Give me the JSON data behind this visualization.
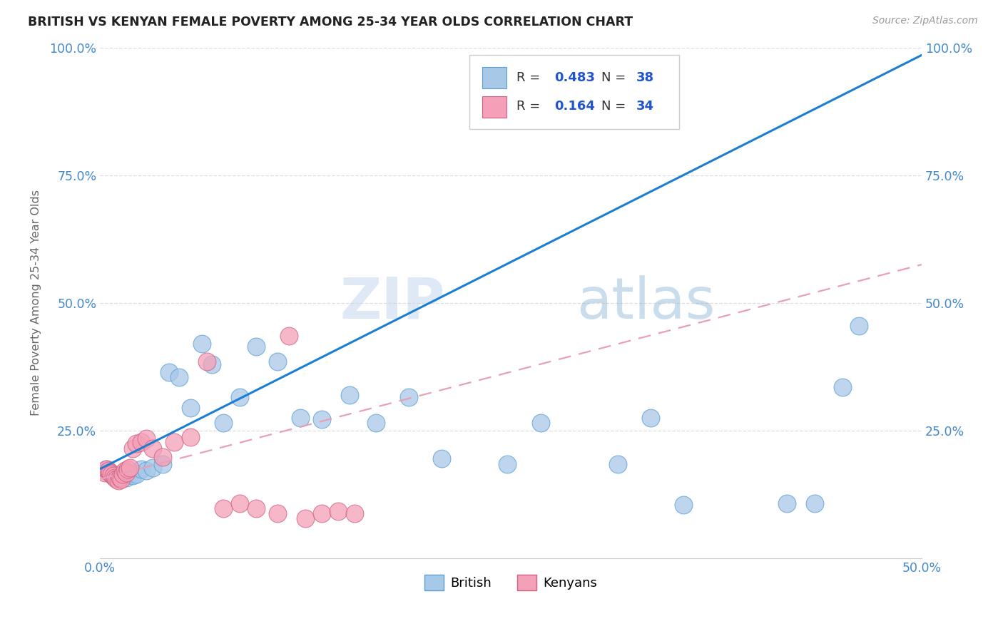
{
  "title": "BRITISH VS KENYAN FEMALE POVERTY AMONG 25-34 YEAR OLDS CORRELATION CHART",
  "source": "Source: ZipAtlas.com",
  "ylabel": "Female Poverty Among 25-34 Year Olds",
  "xlim": [
    0.0,
    0.5
  ],
  "ylim": [
    0.0,
    1.0
  ],
  "british_R": 0.483,
  "british_N": 38,
  "kenyan_R": 0.164,
  "kenyan_N": 34,
  "british_color": "#a8c8e8",
  "british_edge": "#5a9fd4",
  "kenyan_color": "#f4a0b8",
  "kenyan_edge": "#d06080",
  "british_line_color": "#1a7fd4",
  "kenyan_line_color": "#e8a0b8",
  "watermark": "ZIPatlas",
  "grid_color": "#dddddd",
  "tick_color": "#4488cc",
  "british_x": [
    0.004,
    0.006,
    0.008,
    0.01,
    0.012,
    0.014,
    0.016,
    0.018,
    0.02,
    0.022,
    0.025,
    0.028,
    0.032,
    0.038,
    0.042,
    0.048,
    0.055,
    0.062,
    0.068,
    0.075,
    0.085,
    0.095,
    0.108,
    0.122,
    0.135,
    0.152,
    0.168,
    0.188,
    0.208,
    0.248,
    0.268,
    0.315,
    0.335,
    0.355,
    0.418,
    0.435,
    0.452,
    0.462
  ],
  "british_y": [
    0.175,
    0.168,
    0.16,
    0.158,
    0.165,
    0.162,
    0.158,
    0.165,
    0.162,
    0.165,
    0.175,
    0.172,
    0.178,
    0.185,
    0.365,
    0.355,
    0.295,
    0.42,
    0.38,
    0.265,
    0.315,
    0.415,
    0.385,
    0.275,
    0.272,
    0.32,
    0.265,
    0.315,
    0.195,
    0.185,
    0.265,
    0.185,
    0.275,
    0.105,
    0.108,
    0.108,
    0.335,
    0.455
  ],
  "kenyan_x": [
    0.003,
    0.004,
    0.005,
    0.006,
    0.007,
    0.008,
    0.009,
    0.01,
    0.011,
    0.012,
    0.013,
    0.014,
    0.015,
    0.016,
    0.017,
    0.018,
    0.02,
    0.022,
    0.025,
    0.028,
    0.032,
    0.038,
    0.045,
    0.055,
    0.065,
    0.075,
    0.085,
    0.095,
    0.108,
    0.115,
    0.125,
    0.135,
    0.145,
    0.155
  ],
  "kenyan_y": [
    0.168,
    0.175,
    0.172,
    0.168,
    0.165,
    0.162,
    0.158,
    0.155,
    0.152,
    0.158,
    0.155,
    0.165,
    0.172,
    0.168,
    0.175,
    0.178,
    0.215,
    0.225,
    0.228,
    0.235,
    0.215,
    0.198,
    0.228,
    0.238,
    0.385,
    0.098,
    0.108,
    0.098,
    0.088,
    0.435,
    0.078,
    0.088,
    0.092,
    0.088
  ],
  "blue_line_x": [
    0.0,
    0.5
  ],
  "blue_line_y": [
    0.175,
    0.985
  ],
  "pink_line_x": [
    0.0,
    0.5
  ],
  "pink_line_y": [
    0.155,
    0.575
  ]
}
